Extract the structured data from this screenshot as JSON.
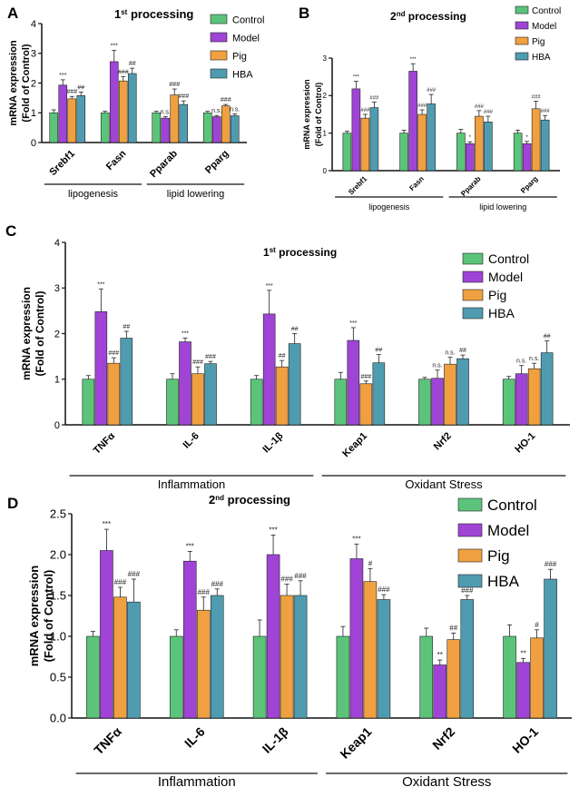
{
  "colors": {
    "Control": "#5cc47a",
    "Model": "#a044d6",
    "Pig": "#f0a040",
    "HBA": "#4f9cb0",
    "axis": "#111111"
  },
  "chart_data": [
    {
      "panel": "A",
      "type": "bar",
      "title": "1st processing",
      "title_base": "1",
      "title_sup": "st",
      "title_rest": " processing",
      "ylabel": [
        "mRNA expression",
        "(Fold of Control)"
      ],
      "ylim": [
        0,
        4
      ],
      "yticks": [
        "0",
        "1",
        "2",
        "3",
        "4"
      ],
      "categories": [
        "Srebf1",
        "Fasn",
        "Pparab",
        "Pparg"
      ],
      "groups": [
        {
          "label": "lipogenesis",
          "span": [
            0,
            1
          ]
        },
        {
          "label": "lipid lowering",
          "span": [
            2,
            3
          ]
        }
      ],
      "legend": [
        "Control",
        "Model",
        "Pig",
        "HBA"
      ],
      "legend_position": "top-right",
      "series": [
        {
          "name": "Control",
          "values": [
            1.0,
            1.0,
            1.0,
            1.0
          ],
          "errors": [
            0.1,
            0.05,
            0.05,
            0.05
          ],
          "labels": [
            "",
            "",
            "",
            ""
          ]
        },
        {
          "name": "Model",
          "values": [
            1.93,
            2.72,
            0.82,
            0.87
          ],
          "errors": [
            0.18,
            0.38,
            0.05,
            0.04
          ],
          "labels": [
            "***",
            "***",
            "",
            ""
          ]
        },
        {
          "name": "Pig",
          "values": [
            1.47,
            2.07,
            1.6,
            1.23
          ],
          "errors": [
            0.08,
            0.15,
            0.2,
            0.05
          ],
          "labels": [
            "###",
            "###",
            "###",
            "###"
          ]
        },
        {
          "name": "HBA",
          "values": [
            1.58,
            2.32,
            1.28,
            0.9
          ],
          "errors": [
            0.12,
            0.18,
            0.12,
            0.06
          ],
          "labels": [
            "##",
            "##",
            "###",
            "n.s."
          ]
        }
      ],
      "extra_labels": [
        {
          "series": 1,
          "index": 2,
          "text": "n.s."
        },
        {
          "series": 1,
          "index": 3,
          "text": "n.s."
        }
      ]
    },
    {
      "panel": "B",
      "type": "bar",
      "title": "2nd processing",
      "title_base": "2",
      "title_sup": "nd",
      "title_rest": " processing",
      "ylabel": [
        "mRNA expression",
        "(Fold of Control)"
      ],
      "ylim": [
        0,
        3
      ],
      "yticks": [
        "0",
        "1",
        "2",
        "3"
      ],
      "categories": [
        "Srebf1",
        "Fasn",
        "Pparab",
        "Pparg"
      ],
      "groups": [
        {
          "label": "lipogenesis",
          "span": [
            0,
            1
          ]
        },
        {
          "label": "lipid lowering",
          "span": [
            2,
            3
          ]
        }
      ],
      "legend": [
        "Control",
        "Model",
        "Pig",
        "HBA"
      ],
      "legend_position": "top-right",
      "series": [
        {
          "name": "Control",
          "values": [
            1.0,
            1.0,
            1.0,
            1.0
          ],
          "errors": [
            0.05,
            0.08,
            0.1,
            0.08
          ],
          "labels": [
            "",
            "",
            "",
            ""
          ]
        },
        {
          "name": "Model",
          "values": [
            2.18,
            2.65,
            0.72,
            0.72
          ],
          "errors": [
            0.2,
            0.2,
            0.05,
            0.06
          ],
          "labels": [
            "***",
            "***",
            "*",
            "*"
          ]
        },
        {
          "name": "Pig",
          "values": [
            1.4,
            1.5,
            1.45,
            1.65
          ],
          "errors": [
            0.1,
            0.12,
            0.15,
            0.2
          ],
          "labels": [
            "###",
            "###",
            "###",
            "###"
          ]
        },
        {
          "name": "HBA",
          "values": [
            1.68,
            1.78,
            1.3,
            1.35
          ],
          "errors": [
            0.15,
            0.25,
            0.15,
            0.12
          ],
          "labels": [
            "###",
            "###",
            "###",
            "###"
          ]
        }
      ],
      "extra_labels": []
    },
    {
      "panel": "C",
      "type": "bar",
      "title": "1st processing",
      "title_base": "1",
      "title_sup": "st",
      "title_rest": " processing",
      "ylabel": [
        "mRNA expression",
        "(Fold of Control)"
      ],
      "ylim": [
        0,
        4
      ],
      "yticks": [
        "0",
        "1",
        "2",
        "3",
        "4"
      ],
      "categories": [
        "TNFα",
        "IL-6",
        "IL-1β",
        "Keap1",
        "Nrf2",
        "HO-1"
      ],
      "groups": [
        {
          "label": "Inflammation",
          "span": [
            0,
            2
          ]
        },
        {
          "label": "Oxidant Stress",
          "span": [
            3,
            5
          ]
        }
      ],
      "legend": [
        "Control",
        "Model",
        "Pig",
        "HBA"
      ],
      "legend_position": "top-right",
      "series": [
        {
          "name": "Control",
          "values": [
            1.0,
            1.0,
            1.0,
            1.0,
            1.0,
            1.0
          ],
          "errors": [
            0.08,
            0.12,
            0.08,
            0.15,
            0.04,
            0.06
          ],
          "labels": [
            "",
            "",
            "",
            "",
            "",
            ""
          ]
        },
        {
          "name": "Model",
          "values": [
            2.48,
            1.82,
            2.43,
            1.85,
            1.02,
            1.12
          ],
          "errors": [
            0.5,
            0.08,
            0.52,
            0.28,
            0.18,
            0.18
          ],
          "labels": [
            "***",
            "***",
            "***",
            "***",
            "n.s.",
            "n.s."
          ]
        },
        {
          "name": "Pig",
          "values": [
            1.35,
            1.12,
            1.27,
            0.9,
            1.33,
            1.23
          ],
          "errors": [
            0.12,
            0.15,
            0.14,
            0.06,
            0.15,
            0.12
          ],
          "labels": [
            "###",
            "###",
            "##",
            "###",
            "n.s.",
            "n.s."
          ]
        },
        {
          "name": "HBA",
          "values": [
            1.9,
            1.34,
            1.78,
            1.36,
            1.45,
            1.58
          ],
          "errors": [
            0.15,
            0.05,
            0.22,
            0.18,
            0.08,
            0.26
          ],
          "labels": [
            "##",
            "###",
            "##",
            "##",
            "##",
            "##"
          ]
        }
      ],
      "extra_labels": []
    },
    {
      "panel": "D",
      "type": "bar",
      "title": "2nd processing",
      "title_base": "2",
      "title_sup": "nd",
      "title_rest": " processing",
      "ylabel": [
        "mRNA expression",
        "(Fold of Control)"
      ],
      "ylim": [
        0,
        2.5
      ],
      "yticks": [
        "0.0",
        "0.5",
        "1.0",
        "1.5",
        "2.0",
        "2.5"
      ],
      "categories": [
        "TNFα",
        "IL-6",
        "IL-1β",
        "Keap1",
        "Nrf2",
        "HO-1"
      ],
      "groups": [
        {
          "label": "Inflammation",
          "span": [
            0,
            2
          ]
        },
        {
          "label": "Oxidant Stress",
          "span": [
            3,
            5
          ]
        }
      ],
      "legend": [
        "Control",
        "Model",
        "Pig",
        "HBA"
      ],
      "legend_position": "top-right",
      "series": [
        {
          "name": "Control",
          "values": [
            1.0,
            1.0,
            1.0,
            1.0,
            1.0,
            1.0
          ],
          "errors": [
            0.06,
            0.08,
            0.2,
            0.12,
            0.1,
            0.14
          ],
          "labels": [
            "",
            "",
            "",
            "",
            "",
            ""
          ]
        },
        {
          "name": "Model",
          "values": [
            2.05,
            1.92,
            2.0,
            1.95,
            0.65,
            0.68
          ],
          "errors": [
            0.26,
            0.12,
            0.24,
            0.18,
            0.06,
            0.05
          ],
          "labels": [
            "***",
            "***",
            "***",
            "***",
            "**",
            "**"
          ]
        },
        {
          "name": "Pig",
          "values": [
            1.48,
            1.32,
            1.5,
            1.67,
            0.96,
            0.98
          ],
          "errors": [
            0.12,
            0.16,
            0.14,
            0.16,
            0.08,
            0.1
          ],
          "labels": [
            "###",
            "###",
            "###",
            "#",
            "##",
            "#"
          ]
        },
        {
          "name": "HBA",
          "values": [
            1.42,
            1.5,
            1.5,
            1.45,
            1.45,
            1.7
          ],
          "errors": [
            0.28,
            0.08,
            0.18,
            0.06,
            0.05,
            0.12
          ],
          "labels": [
            "###",
            "###",
            "###",
            "###",
            "###",
            "###"
          ]
        }
      ],
      "extra_labels": []
    }
  ]
}
